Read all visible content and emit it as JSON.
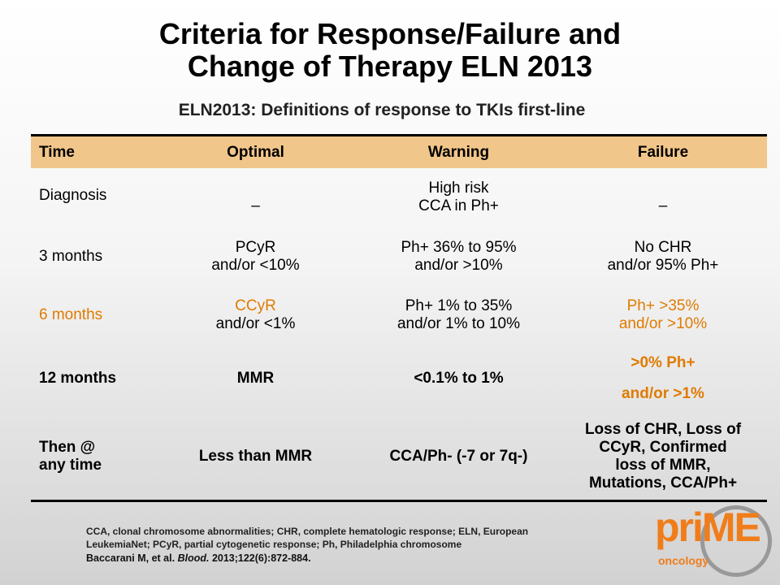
{
  "title": {
    "line1": "Criteria for Response/Failure and",
    "line2": "Change of Therapy ELN 2013"
  },
  "subtitle": "ELN2013: Definitions of response to TKIs first-line",
  "table": {
    "headers": [
      "Time",
      "Optimal",
      "Warning",
      "Failure"
    ],
    "rows": [
      {
        "time": "Diagnosis",
        "optimal": "–",
        "warning": "High risk\nCCA in Ph+",
        "failure": "–"
      },
      {
        "time": "3 months",
        "optimal": "PCyR\nand/or <10%",
        "warning": "Ph+ 36% to 95%\nand/or >10%",
        "failure": "No CHR\nand/or 95% Ph+"
      },
      {
        "time": "6 months",
        "optimal_line1": "CCyR",
        "optimal_line2": "and/or <1%",
        "warning": "Ph+ 1% to 35%\nand/or 1% to 10%",
        "failure": "Ph+ >35%\nand/or >10%"
      },
      {
        "time": "12 months",
        "optimal": "MMR",
        "warning": "<0.1% to 1%",
        "failure_line1": ">0% Ph+",
        "failure_line2": "and/or >1%"
      },
      {
        "time": "Then @\nany time",
        "optimal": "Less than MMR",
        "warning": "CCA/Ph- (-7 or 7q-)",
        "failure": "Loss of CHR, Loss of\nCCyR, Confirmed\nloss of MMR,\nMutations, CCA/Ph+"
      }
    ]
  },
  "footnote": "CCA, clonal chromosome abnormalities; CHR, complete hematologic response; ELN, European LeukemiaNet; PCyR, partial cytogenetic response; Ph, Philadelphia chromosome",
  "citation": {
    "authors": "Baccarani M, et al.",
    "journal": "Blood.",
    "details": "2013;122(6):872-884."
  },
  "logo": {
    "text": "priME",
    "sub": "oncology"
  },
  "colors": {
    "header_bg": "#f1c68a",
    "highlight": "#e07b00",
    "logo": "#f07d1a"
  }
}
